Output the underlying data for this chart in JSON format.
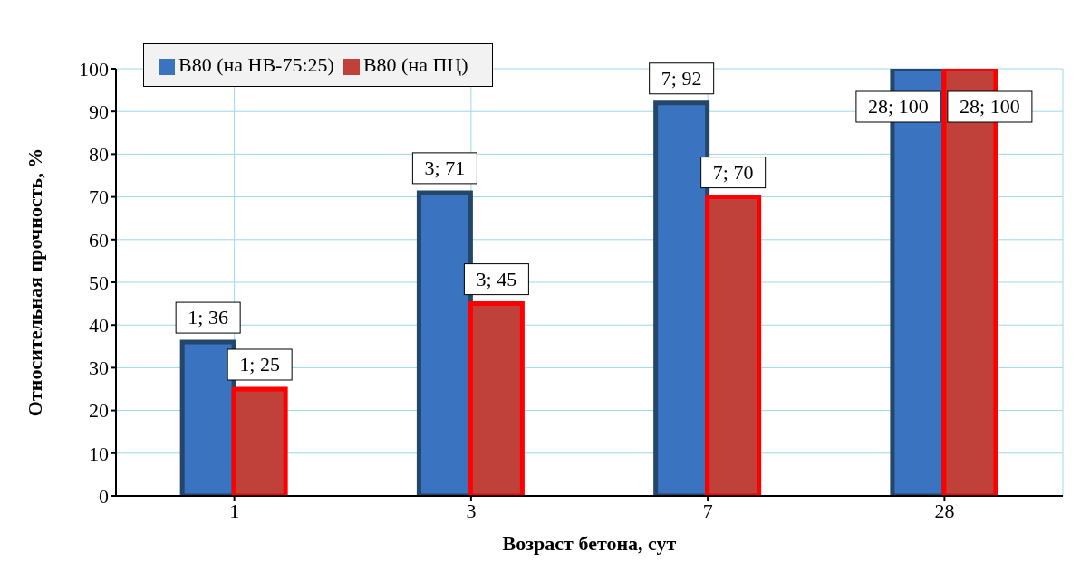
{
  "chart_data": {
    "type": "bar",
    "xlabel": "Возраст бетона, сут",
    "ylabel": "Относительная прочность,  %",
    "categories": [
      "1",
      "3",
      "7",
      "28"
    ],
    "series": [
      {
        "name": "В80 (на НВ-75:25)",
        "color": "#3a74c0",
        "values": [
          36,
          71,
          92,
          100
        ],
        "value_labels": [
          "1; 36",
          "3; 71",
          "7; 92",
          "28; 100"
        ]
      },
      {
        "name": "В80 (на ПЦ)",
        "color": "#c0403a",
        "values": [
          25,
          45,
          70,
          100
        ],
        "value_labels": [
          "1; 25",
          "3; 45",
          "7; 70",
          "28; 100"
        ]
      }
    ],
    "ylim": [
      0,
      100
    ],
    "yticks": [
      0,
      10,
      20,
      30,
      40,
      50,
      60,
      70,
      80,
      90,
      100
    ],
    "grid": true,
    "legend": "top left"
  }
}
